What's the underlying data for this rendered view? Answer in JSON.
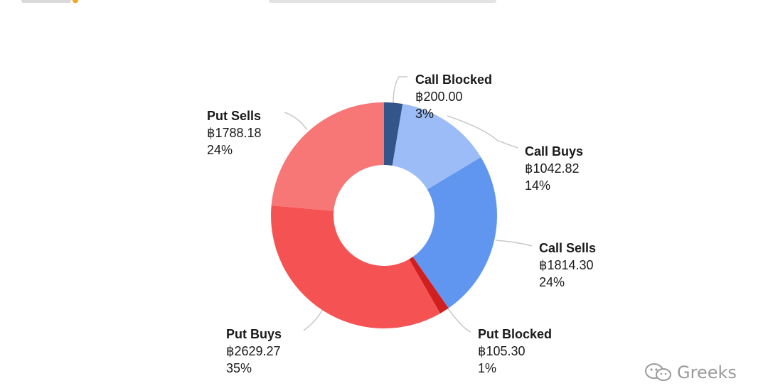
{
  "chart_data": {
    "type": "pie",
    "donut": true,
    "currency_symbol": "฿",
    "slices": [
      {
        "name": "Call Blocked",
        "value_label": "฿200.00",
        "value": 200.0,
        "percent_label": "3%",
        "color": "#34558a"
      },
      {
        "name": "Call Buys",
        "value_label": "฿1042.82",
        "value": 1042.82,
        "percent_label": "14%",
        "color": "#9bbcf6"
      },
      {
        "name": "Call Sells",
        "value_label": "฿1814.30",
        "value": 1814.3,
        "percent_label": "24%",
        "color": "#6096f0"
      },
      {
        "name": "Put Blocked",
        "value_label": "฿105.30",
        "value": 105.3,
        "percent_label": "1%",
        "color": "#d11f1f"
      },
      {
        "name": "Put Buys",
        "value_label": "฿2629.27",
        "value": 2629.27,
        "percent_label": "35%",
        "color": "#f55353"
      },
      {
        "name": "Put Sells",
        "value_label": "฿1788.18",
        "value": 1788.18,
        "percent_label": "24%",
        "color": "#f77676"
      }
    ]
  },
  "watermark": {
    "text": "Greeks"
  }
}
